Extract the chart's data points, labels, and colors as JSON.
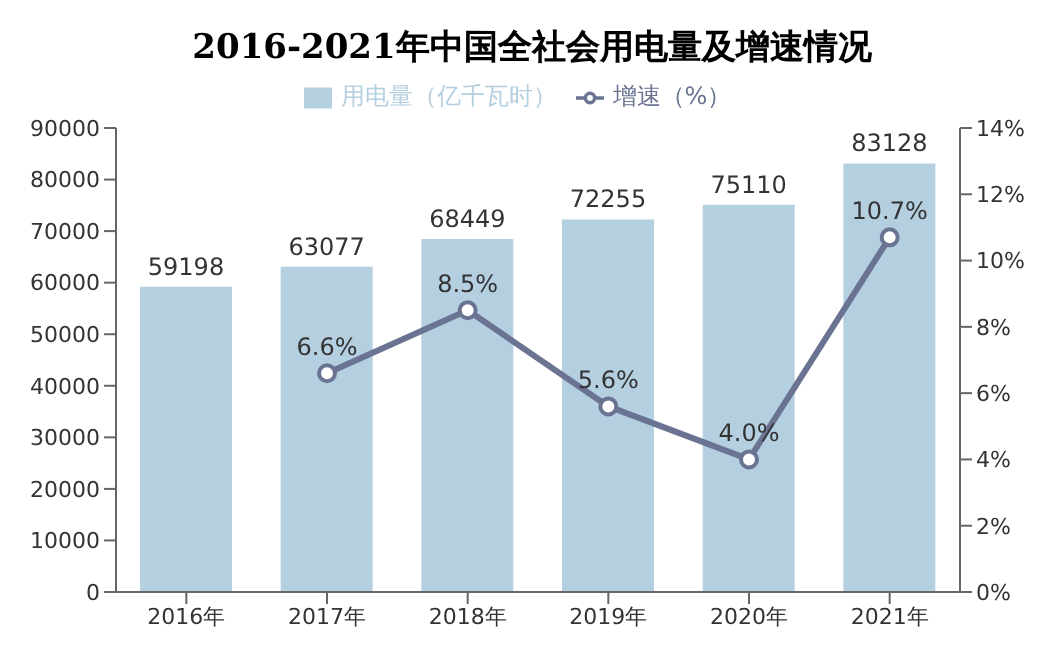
{
  "chart_data": {
    "type": "bar",
    "title": "2016-2021年中国全社会用电量及增速情况",
    "categories": [
      "2016年",
      "2017年",
      "2018年",
      "2019年",
      "2020年",
      "2021年"
    ],
    "series": [
      {
        "name": "用电量（亿千瓦时）",
        "color": "#b4cfe0",
        "values": [
          59198,
          63077,
          68449,
          72255,
          75110,
          83128
        ],
        "value_labels": [
          "59198",
          "63077",
          "68449",
          "72255",
          "75110",
          "83128"
        ]
      },
      {
        "name": "增速（%）",
        "type": "line",
        "axis": "y2",
        "color": "#6a7391",
        "marker": "circle",
        "values": [
          null,
          6.6,
          8.5,
          5.6,
          4.0,
          10.7
        ],
        "value_labels": [
          null,
          "6.6%",
          "8.5%",
          "5.6%",
          "4.0%",
          "10.7%"
        ]
      }
    ],
    "ylim": [
      0,
      90000
    ],
    "yticks": [
      0,
      10000,
      20000,
      30000,
      40000,
      50000,
      60000,
      70000,
      80000,
      90000
    ],
    "y2lim": [
      0,
      14
    ],
    "y2ticks": [
      {
        "value": 0,
        "label": "0%"
      },
      {
        "value": 2,
        "label": "2%"
      },
      {
        "value": 4,
        "label": "4%"
      },
      {
        "value": 6,
        "label": "6%"
      },
      {
        "value": 8,
        "label": "8%"
      },
      {
        "value": 10,
        "label": "10%"
      },
      {
        "value": 12,
        "label": "12%"
      },
      {
        "value": 14,
        "label": "14%"
      }
    ],
    "legend": "top"
  }
}
